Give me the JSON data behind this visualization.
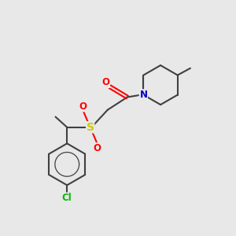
{
  "bg_color": "#e8e8e8",
  "bond_color": "#404040",
  "bond_width": 1.5,
  "atom_colors": {
    "O": "#ff0000",
    "N": "#0000cc",
    "S": "#cccc00",
    "Cl": "#00bb00",
    "C": "#404040"
  },
  "font_size": 8.5,
  "fig_size": [
    3.0,
    3.0
  ],
  "dpi": 100
}
